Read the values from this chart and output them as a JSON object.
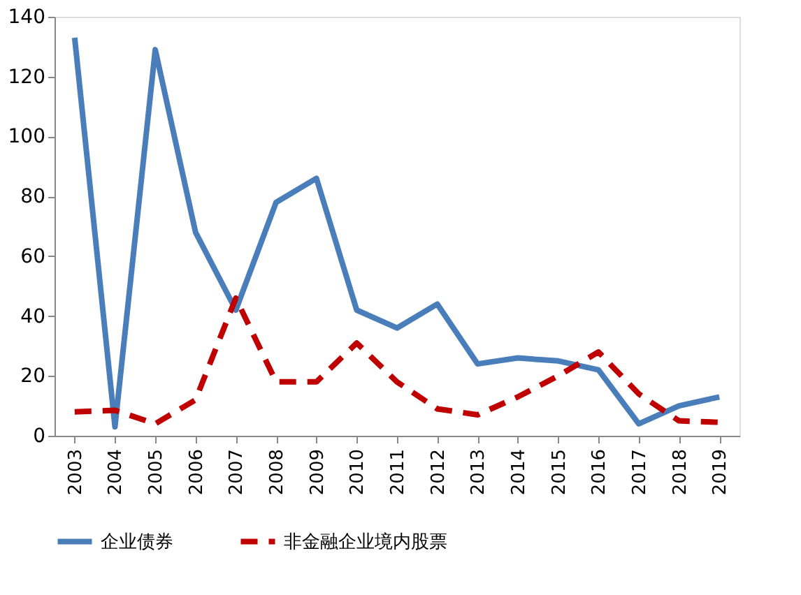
{
  "chart_data": {
    "type": "line",
    "categories": [
      "2003",
      "2004",
      "2005",
      "2006",
      "2007",
      "2008",
      "2009",
      "2010",
      "2011",
      "2012",
      "2013",
      "2014",
      "2015",
      "2016",
      "2017",
      "2018",
      "2019"
    ],
    "series": [
      {
        "name": "企业债券",
        "color": "#4a7ebb",
        "line_style": "solid",
        "values": [
          133,
          3,
          129,
          68,
          42,
          78,
          86,
          42,
          36,
          44,
          24,
          26,
          25,
          22,
          4,
          10,
          13
        ]
      },
      {
        "name": "非金融企业境内股票",
        "color": "#c00000",
        "line_style": "dashed",
        "values": [
          8,
          8.5,
          4,
          12,
          46,
          18,
          18,
          31,
          18,
          9,
          7,
          13,
          20,
          28,
          14,
          5,
          4.5
        ]
      }
    ],
    "ylim": [
      0,
      140
    ],
    "yticks": [
      0,
      20,
      40,
      60,
      80,
      100,
      120,
      140
    ],
    "grid": false,
    "legend": "bottom",
    "marker": "none"
  }
}
